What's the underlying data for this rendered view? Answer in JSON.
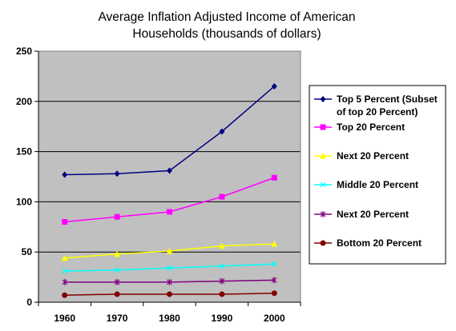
{
  "chart_data": {
    "type": "line",
    "title": "Average Inflation Adjusted Income of American Households (thousands of dollars)",
    "title_lines": [
      "Average Inflation Adjusted Income of American",
      "Households (thousands of dollars)"
    ],
    "xlabel": "",
    "ylabel": "",
    "categories": [
      "1960",
      "1970",
      "1980",
      "1990",
      "2000"
    ],
    "ylim": [
      0,
      250
    ],
    "yticks": [
      0,
      50,
      100,
      150,
      200,
      250
    ],
    "grid": true,
    "plot_background": "#c0c0c0",
    "legend_position": "right",
    "series": [
      {
        "name": "Top 5 Percent (Subset of top 20 Percent)",
        "legend_lines": [
          "Top 5 Percent (Subset",
          "of top 20 Percent)"
        ],
        "color": "#000080",
        "marker": "diamond",
        "values": [
          127,
          128,
          131,
          170,
          215
        ]
      },
      {
        "name": "Top 20 Percent",
        "legend_lines": [
          "Top 20 Percent"
        ],
        "color": "#ff00ff",
        "marker": "square",
        "values": [
          80,
          85,
          90,
          105,
          124
        ]
      },
      {
        "name": "Next 20 Percent",
        "legend_lines": [
          "Next 20 Percent"
        ],
        "color": "#ffff00",
        "marker": "triangle",
        "values": [
          44,
          48,
          51,
          56,
          58
        ]
      },
      {
        "name": "Middle 20 Percent",
        "legend_lines": [
          "Middle 20 Percent"
        ],
        "color": "#00ffff",
        "marker": "x",
        "values": [
          31,
          32,
          34,
          36,
          38
        ]
      },
      {
        "name": "Next 20 Percent",
        "legend_lines": [
          "Next 20 Percent"
        ],
        "color": "#800080",
        "marker": "star",
        "values": [
          20,
          20,
          20,
          21,
          22
        ]
      },
      {
        "name": "Bottom 20 Percent",
        "legend_lines": [
          "Bottom 20 Percent"
        ],
        "color": "#800000",
        "marker": "circle",
        "values": [
          7,
          8,
          8,
          8,
          9
        ]
      }
    ]
  }
}
